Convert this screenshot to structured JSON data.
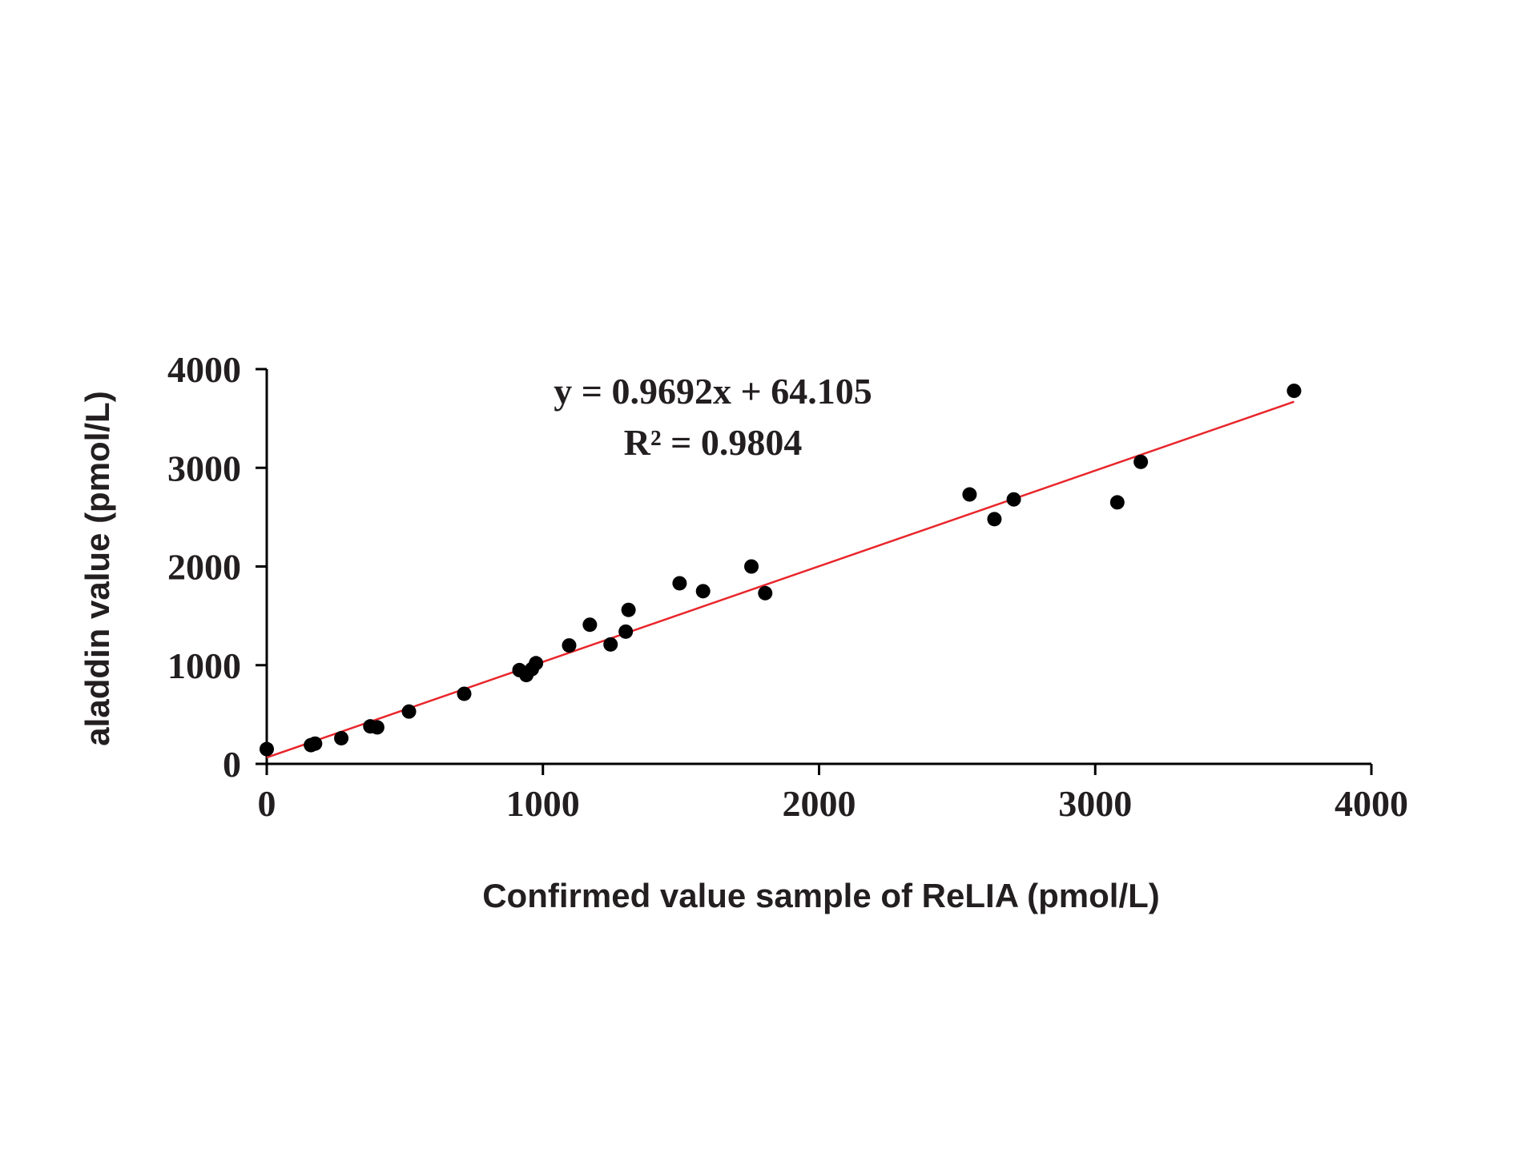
{
  "chart_data": {
    "type": "scatter",
    "title": "",
    "xlabel": "Confirmed value sample of ReLIA (pmol/L)",
    "ylabel": "aladdin value (pmol/L)",
    "xlim": [
      0,
      4000
    ],
    "ylim": [
      0,
      4000
    ],
    "xticks": [
      "0",
      "1000",
      "2000",
      "3000",
      "4000"
    ],
    "yticks": [
      "0",
      "1000",
      "2000",
      "3000",
      "4000"
    ],
    "grid": false,
    "legend": "none",
    "annotations": {
      "equation": "y = 0.9692x + 64.105",
      "r_squared": "R² = 0.9804"
    },
    "trendline": {
      "slope": 0.9692,
      "intercept": 64.105,
      "x_range": [
        0,
        3720
      ],
      "color": "#e8262b"
    },
    "point_color": "#000000",
    "points": [
      {
        "x": 0,
        "y": 150
      },
      {
        "x": 160,
        "y": 190
      },
      {
        "x": 175,
        "y": 205
      },
      {
        "x": 270,
        "y": 260
      },
      {
        "x": 375,
        "y": 380
      },
      {
        "x": 400,
        "y": 370
      },
      {
        "x": 515,
        "y": 530
      },
      {
        "x": 715,
        "y": 710
      },
      {
        "x": 915,
        "y": 950
      },
      {
        "x": 940,
        "y": 900
      },
      {
        "x": 960,
        "y": 960
      },
      {
        "x": 975,
        "y": 1020
      },
      {
        "x": 1095,
        "y": 1200
      },
      {
        "x": 1170,
        "y": 1410
      },
      {
        "x": 1245,
        "y": 1210
      },
      {
        "x": 1300,
        "y": 1340
      },
      {
        "x": 1310,
        "y": 1560
      },
      {
        "x": 1495,
        "y": 1830
      },
      {
        "x": 1580,
        "y": 1750
      },
      {
        "x": 1755,
        "y": 2000
      },
      {
        "x": 1805,
        "y": 1730
      },
      {
        "x": 2545,
        "y": 2730
      },
      {
        "x": 2635,
        "y": 2480
      },
      {
        "x": 2705,
        "y": 2680
      },
      {
        "x": 3080,
        "y": 2650
      },
      {
        "x": 3165,
        "y": 3060
      },
      {
        "x": 3720,
        "y": 3780
      }
    ]
  }
}
